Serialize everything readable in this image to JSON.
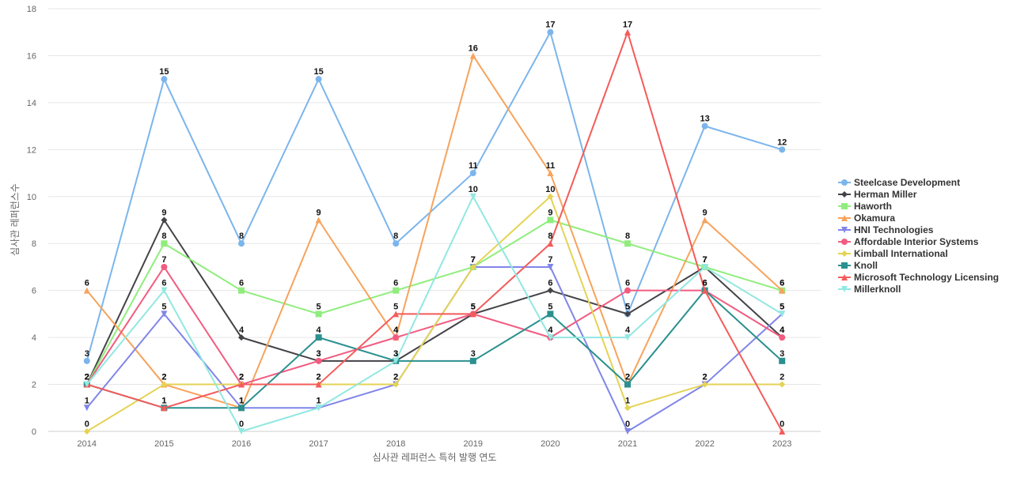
{
  "chart_data": {
    "type": "line",
    "title": "",
    "xlabel": "심사관 레퍼런스 특허 발행 연도",
    "ylabel": "심사관 레퍼런스수",
    "x": [
      "2014",
      "2015",
      "2016",
      "2017",
      "2018",
      "2019",
      "2020",
      "2021",
      "2022",
      "2023"
    ],
    "ylim": [
      0,
      18
    ],
    "yticks": [
      0,
      2,
      4,
      6,
      8,
      10,
      12,
      14,
      16,
      18
    ],
    "grid": true,
    "legend_position": "right",
    "series": [
      {
        "name": "Steelcase Development",
        "color": "#7cb5ec",
        "marker": "circle",
        "values": [
          3,
          15,
          8,
          15,
          8,
          11,
          17,
          5,
          13,
          12
        ]
      },
      {
        "name": "Herman Miller",
        "color": "#434348",
        "marker": "diamond",
        "values": [
          2,
          9,
          4,
          3,
          3,
          5,
          6,
          5,
          7,
          4
        ]
      },
      {
        "name": "Haworth",
        "color": "#90ed7d",
        "marker": "square",
        "values": [
          2,
          8,
          6,
          5,
          6,
          7,
          9,
          8,
          7,
          6
        ]
      },
      {
        "name": "Okamura",
        "color": "#f7a35c",
        "marker": "triangle",
        "values": [
          6,
          2,
          1,
          9,
          4,
          16,
          11,
          2,
          9,
          6
        ]
      },
      {
        "name": "HNI Technologies",
        "color": "#8085e9",
        "marker": "triangle-down",
        "values": [
          1,
          5,
          1,
          1,
          2,
          7,
          7,
          0,
          2,
          5
        ]
      },
      {
        "name": "Affordable Interior Systems",
        "color": "#f15c80",
        "marker": "circle",
        "values": [
          2,
          7,
          2,
          3,
          4,
          5,
          4,
          6,
          6,
          4
        ]
      },
      {
        "name": "Kimball International",
        "color": "#e4d354",
        "marker": "diamond",
        "values": [
          0,
          2,
          2,
          2,
          2,
          7,
          10,
          1,
          2,
          2
        ]
      },
      {
        "name": "Knoll",
        "color": "#2b908f",
        "marker": "square",
        "values": [
          2,
          1,
          1,
          4,
          3,
          3,
          5,
          2,
          6,
          3
        ]
      },
      {
        "name": "Microsoft Technology Licensing",
        "color": "#f45b5b",
        "marker": "triangle",
        "values": [
          2,
          1,
          2,
          2,
          5,
          5,
          8,
          17,
          6,
          0
        ]
      },
      {
        "name": "Millerknoll",
        "color": "#91e8e1",
        "marker": "triangle-down",
        "values": [
          2,
          6,
          0,
          1,
          3,
          10,
          4,
          4,
          7,
          5
        ]
      }
    ]
  }
}
